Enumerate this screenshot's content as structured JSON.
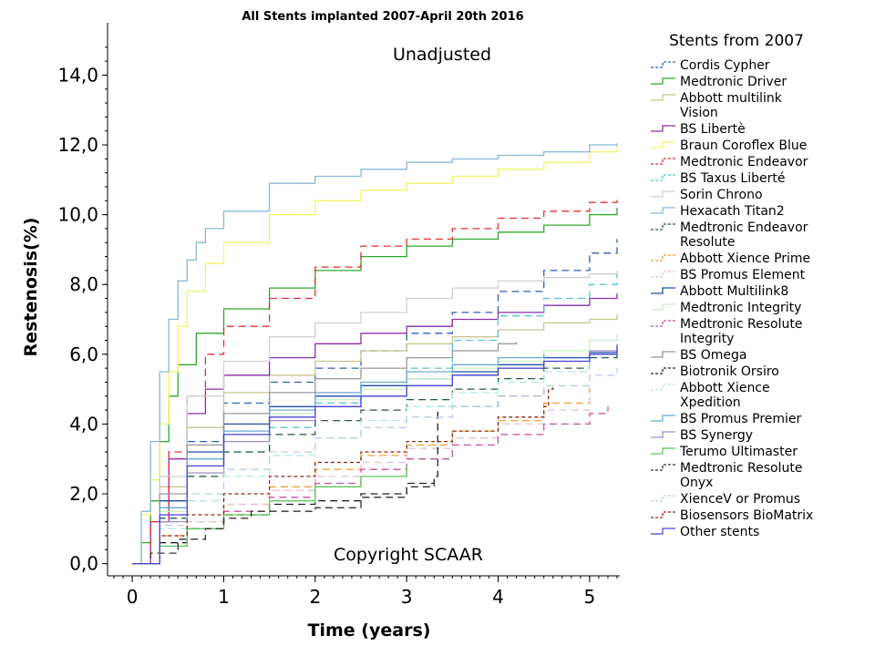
{
  "chart_data": {
    "type": "line",
    "title": "All Stents implanted 2007-April 20th 2016",
    "subtitle": "Unadjusted",
    "watermark": "Copyright SCAAR",
    "xlabel": "Time (years)",
    "ylabel": "Restenosis(%)",
    "xlim": [
      -0.27,
      5.33
    ],
    "ylim": [
      -0.35,
      15.5
    ],
    "xticks": [
      0,
      1,
      2,
      3,
      4,
      5
    ],
    "xtick_labels": [
      "0",
      "1",
      "2",
      "3",
      "4",
      "5"
    ],
    "yticks": [
      0,
      2,
      4,
      6,
      8,
      10,
      12,
      14
    ],
    "ytick_labels": [
      "0,0",
      "2,0",
      "4,0",
      "6,0",
      "8,0",
      "10,0",
      "12,0",
      "14,0"
    ],
    "grid": false,
    "legend_title": "Stents from 2007",
    "legend_position": "right",
    "series": [
      {
        "name": "Cordis Cypher",
        "color": "#2f5fb3",
        "dash": "8,5",
        "x": [
          0,
          0.3,
          0.6,
          1,
          1.5,
          2,
          2.5,
          3,
          3.5,
          4,
          4.5,
          5,
          5.3
        ],
        "y": [
          0,
          1.8,
          3.5,
          4.6,
          5.2,
          5.6,
          6.1,
          6.6,
          7.2,
          7.8,
          8.4,
          8.9,
          9.3
        ]
      },
      {
        "name": "Medtronic Driver",
        "color": "#2ea82e",
        "dash": "",
        "x": [
          0,
          0.1,
          0.2,
          0.3,
          0.4,
          0.5,
          0.7,
          1,
          1.5,
          2,
          2.5,
          3,
          3.5,
          4,
          4.5,
          5,
          5.3
        ],
        "y": [
          0,
          0.6,
          1.8,
          3.5,
          4.8,
          5.7,
          6.6,
          7.3,
          7.9,
          8.4,
          8.8,
          9.1,
          9.3,
          9.5,
          9.7,
          10.0,
          10.2
        ]
      },
      {
        "name": "Abbott multilink Vision",
        "color": "#c7c58f",
        "dash": "",
        "x": [
          0,
          0.3,
          0.6,
          1,
          1.5,
          2,
          2.5,
          3,
          3.5,
          4,
          4.5,
          5,
          5.3
        ],
        "y": [
          0,
          2.2,
          3.9,
          4.9,
          5.4,
          5.8,
          6.1,
          6.3,
          6.5,
          6.7,
          6.9,
          7.0,
          7.15
        ]
      },
      {
        "name": "BS Libertè",
        "color": "#8a2ea8",
        "dash": "",
        "x": [
          0,
          0.2,
          0.4,
          0.6,
          0.8,
          1,
          1.5,
          2,
          2.5,
          3,
          3.5,
          4,
          4.5,
          5,
          5.3
        ],
        "y": [
          0,
          1.2,
          3.0,
          4.3,
          5.0,
          5.4,
          5.9,
          6.3,
          6.6,
          6.8,
          7.0,
          7.2,
          7.4,
          7.6,
          7.75
        ]
      },
      {
        "name": "Braun Coroflex Blue",
        "color": "#f4f466",
        "dash": "",
        "x": [
          0,
          0.1,
          0.2,
          0.3,
          0.4,
          0.5,
          0.6,
          0.8,
          1,
          1.5,
          2,
          2.5,
          3,
          3.5,
          4,
          4.5,
          5,
          5.3
        ],
        "y": [
          0,
          1.4,
          2.4,
          4.0,
          5.5,
          6.8,
          7.8,
          8.6,
          9.2,
          10.0,
          10.4,
          10.7,
          10.9,
          11.1,
          11.3,
          11.5,
          11.8,
          12.0
        ]
      },
      {
        "name": "Medtronic Endeavor",
        "color": "#e03030",
        "dash": "8,5",
        "x": [
          0,
          0.2,
          0.4,
          0.6,
          0.8,
          1,
          1.5,
          2,
          2.5,
          3,
          3.5,
          4,
          4.5,
          5,
          5.3
        ],
        "y": [
          0,
          1.2,
          3.2,
          4.8,
          6.0,
          6.8,
          7.6,
          8.5,
          9.1,
          9.3,
          9.6,
          9.9,
          10.1,
          10.35,
          10.45
        ]
      },
      {
        "name": "BS Taxus Liberté",
        "color": "#55c4d4",
        "dash": "8,5",
        "x": [
          0,
          0.3,
          0.6,
          1,
          1.5,
          2,
          2.5,
          3,
          3.5,
          4,
          4.5,
          5,
          5.3
        ],
        "y": [
          0,
          1.4,
          2.5,
          3.2,
          3.9,
          4.6,
          5.1,
          5.6,
          6.4,
          7.1,
          7.6,
          8.0,
          8.3
        ]
      },
      {
        "name": "Sorin Chrono",
        "color": "#cfcfcf",
        "dash": "",
        "x": [
          0,
          0.3,
          0.6,
          1,
          1.5,
          2,
          2.5,
          3,
          3.5,
          4,
          4.5,
          5,
          5.3
        ],
        "y": [
          0,
          2.5,
          4.8,
          5.8,
          6.5,
          6.9,
          7.2,
          7.6,
          7.9,
          8.1,
          8.2,
          8.3,
          8.4
        ]
      },
      {
        "name": "Hexacath Titan2",
        "color": "#8ab8d6",
        "dash": "",
        "x": [
          0,
          0.1,
          0.2,
          0.3,
          0.4,
          0.5,
          0.6,
          0.7,
          0.8,
          1,
          1.5,
          2,
          2.5,
          3,
          3.5,
          4,
          4.5,
          5,
          5.3
        ],
        "y": [
          0,
          1.5,
          3.5,
          5.5,
          7.0,
          8.1,
          8.7,
          9.2,
          9.6,
          10.1,
          10.9,
          11.1,
          11.3,
          11.5,
          11.6,
          11.7,
          11.8,
          12.0,
          12.05
        ]
      },
      {
        "name": "Medtronic Endeavor Resolute",
        "color": "#1f5f3f",
        "dash": "8,5",
        "x": [
          0,
          0.3,
          0.6,
          1,
          1.5,
          2,
          2.5,
          3,
          3.5,
          4,
          4.5,
          5,
          5.3
        ],
        "y": [
          0,
          1.3,
          2.5,
          3.2,
          3.7,
          4.1,
          4.4,
          4.7,
          5.0,
          5.3,
          5.6,
          5.9,
          6.1
        ]
      },
      {
        "name": "Abbott Xience Prime",
        "color": "#f0a030",
        "dash": "8,5",
        "x": [
          0,
          0.3,
          0.6,
          1,
          1.5,
          2,
          2.5,
          3,
          3.5,
          4,
          4.5,
          5
        ],
        "y": [
          0,
          0.8,
          1.2,
          1.7,
          2.2,
          2.7,
          3.1,
          3.4,
          3.8,
          4.1,
          4.6,
          5.05
        ]
      },
      {
        "name": "BS Promus Element",
        "color": "#f0bcd4",
        "dash": "8,5",
        "x": [
          0,
          0.3,
          0.6,
          1,
          1.5,
          2,
          2.5,
          3,
          3.5,
          4,
          4.5,
          5
        ],
        "y": [
          0,
          0.6,
          1.2,
          1.7,
          2.1,
          2.5,
          2.9,
          3.3,
          3.6,
          4.0,
          4.4,
          4.8
        ]
      },
      {
        "name": "Abbott Multilink8",
        "color": "#1f4fa8",
        "dash": "",
        "x": [
          0,
          0.3,
          0.6,
          1,
          1.5,
          2,
          2.5,
          3,
          3.5,
          4,
          4.5,
          5,
          5.3
        ],
        "y": [
          0,
          1.8,
          3.2,
          4.0,
          4.5,
          4.8,
          5.1,
          5.3,
          5.5,
          5.7,
          5.9,
          6.05,
          6.1
        ]
      },
      {
        "name": "Medtronic Integrity",
        "color": "#c8f0c0",
        "dash": "",
        "x": [
          0,
          0.3,
          0.6,
          1,
          1.5,
          2,
          2.5,
          3,
          3.5,
          4,
          4.5,
          5,
          5.3
        ],
        "y": [
          0,
          1.5,
          2.8,
          3.7,
          4.3,
          4.7,
          5.0,
          5.3,
          5.6,
          5.8,
          6.1,
          6.4,
          6.6
        ]
      },
      {
        "name": "Medtronic Resolute Integrity",
        "color": "#c050a0",
        "dash": "8,5",
        "x": [
          0,
          0.3,
          0.6,
          1,
          1.5,
          2,
          2.5,
          3,
          3.5,
          4,
          4.5,
          5,
          5.2
        ],
        "y": [
          0,
          0.6,
          1.0,
          1.5,
          1.9,
          2.3,
          2.7,
          3.0,
          3.4,
          3.7,
          4.0,
          4.3,
          4.5
        ]
      },
      {
        "name": "BS Omega",
        "color": "#999999",
        "dash": "",
        "x": [
          0,
          0.3,
          0.6,
          1,
          1.5,
          2,
          2.5,
          3,
          3.5,
          4,
          4.2
        ],
        "y": [
          0,
          2.0,
          3.4,
          4.3,
          4.9,
          5.3,
          5.6,
          5.9,
          6.1,
          6.3,
          6.35
        ]
      },
      {
        "name": "Biotronik Orsiro",
        "color": "#222222",
        "dash": "8,5",
        "x": [
          0,
          0.3,
          0.6,
          1,
          1.5,
          2,
          2.5,
          3,
          3.3,
          3.34,
          4,
          4.5
        ],
        "y": [
          0,
          0.6,
          1.0,
          1.4,
          1.7,
          1.8,
          2.0,
          2.3,
          2.5,
          4.5,
          4.8,
          5.0
        ]
      },
      {
        "name": "Abbott Xience Xpedition",
        "color": "#aeeaea",
        "dash": "8,5",
        "x": [
          0,
          0.3,
          0.6,
          1,
          1.5,
          2,
          2.5,
          3,
          3.5,
          4,
          4.5,
          5
        ],
        "y": [
          0,
          1.0,
          1.8,
          2.5,
          3.1,
          3.6,
          4.1,
          4.5,
          4.9,
          5.2,
          5.5,
          5.8
        ]
      },
      {
        "name": "BS Promus Premier",
        "color": "#6aaad0",
        "dash": "",
        "x": [
          0,
          0.3,
          0.6,
          1,
          1.5,
          2,
          2.5,
          3,
          3.5,
          4,
          4.5
        ],
        "y": [
          0,
          1.6,
          3.0,
          3.8,
          4.4,
          4.9,
          5.2,
          5.5,
          5.7,
          5.9,
          6.0
        ]
      },
      {
        "name": "BS Synergy",
        "color": "#a090c8",
        "dash": "",
        "x": [
          0,
          0.3,
          0.6,
          1,
          1.5,
          2,
          2.5,
          3,
          3.5,
          4,
          4.5,
          5,
          5.3
        ],
        "y": [
          0,
          1.2,
          2.6,
          3.5,
          4.1,
          4.5,
          4.8,
          5.1,
          5.4,
          5.6,
          5.8,
          6.1,
          6.3
        ]
      },
      {
        "name": "Terumo Ultimaster",
        "color": "#5ac85a",
        "dash": "",
        "x": [
          0,
          0.3,
          0.6,
          1,
          1.5,
          2,
          2.5,
          3
        ],
        "y": [
          0,
          0.5,
          1.0,
          1.4,
          1.8,
          2.2,
          2.5,
          2.8
        ]
      },
      {
        "name": "Medtronic Resolute Onyx",
        "color": "#333333",
        "dash": "8,5",
        "x": [
          0,
          0.2,
          0.5,
          0.8,
          1,
          1.3,
          1.5,
          2,
          2.5,
          3,
          3.3
        ],
        "y": [
          0,
          0.3,
          0.7,
          1.0,
          1.3,
          1.5,
          1.5,
          1.6,
          1.9,
          2.2,
          2.4
        ]
      },
      {
        "name": "XienceV or Promus",
        "color": "#b8ccec",
        "dash": "8,5",
        "x": [
          0,
          0.3,
          0.6,
          1,
          1.5,
          2,
          2.5,
          3,
          3.5,
          4,
          4.5,
          5,
          5.3
        ],
        "y": [
          0,
          1.1,
          2.0,
          2.7,
          3.2,
          3.6,
          3.9,
          4.2,
          4.5,
          4.8,
          5.1,
          5.4,
          5.6
        ]
      },
      {
        "name": "Biosensors BioMatrix",
        "color": "#8a2a10",
        "dash": "4,3",
        "x": [
          0,
          0.3,
          0.6,
          1,
          1.5,
          2,
          2.5,
          3,
          3.5,
          4,
          4.5,
          4.55,
          4.6
        ],
        "y": [
          0,
          0.8,
          1.4,
          2.0,
          2.5,
          2.9,
          3.2,
          3.5,
          3.8,
          4.2,
          4.5,
          5.0,
          5.05
        ]
      },
      {
        "name": "Other stents",
        "color": "#4848d8",
        "dash": "",
        "x": [
          0,
          0.3,
          0.6,
          1,
          1.5,
          2,
          2.5,
          3,
          3.5,
          4,
          4.5,
          5,
          5.3
        ],
        "y": [
          0,
          1.4,
          2.8,
          3.7,
          4.2,
          4.5,
          4.8,
          5.1,
          5.4,
          5.6,
          5.8,
          6.0,
          6.25
        ]
      }
    ]
  }
}
